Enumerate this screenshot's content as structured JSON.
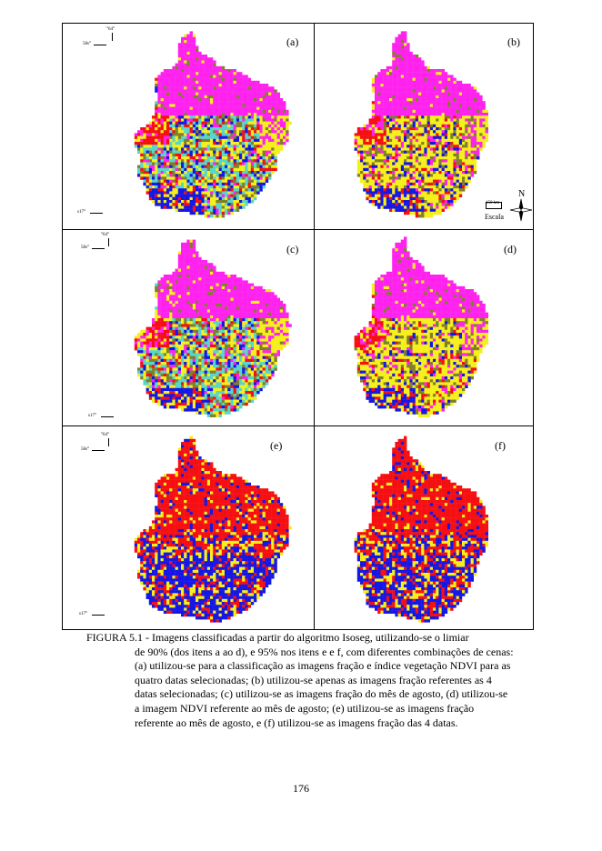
{
  "figure": {
    "panels": [
      {
        "label": "(a)",
        "scheme": "isoseg90",
        "coord_top_lon": "°64°",
        "coord_top_lat": "58s°",
        "coord_bot": "s17°"
      },
      {
        "label": "(b)",
        "scheme": "isoseg90b"
      },
      {
        "label": "(c)",
        "scheme": "isoseg90c",
        "coord_top_lon": "°64°",
        "coord_top_lat": "58s°",
        "coord_bot": ""
      },
      {
        "label": "(d)",
        "scheme": "isoseg90d"
      },
      {
        "label": "(e)",
        "scheme": "isoseg95",
        "coord_top_lon": "°64°",
        "coord_top_lat": "58s°",
        "coord_bot": "s17°"
      },
      {
        "label": "(f)",
        "scheme": "isoseg95b"
      }
    ],
    "north_label": "N",
    "scale_label": "Escala",
    "scale_value": "150 km",
    "colors": {
      "magenta": "#ff22ee",
      "yellow": "#f5ef1c",
      "red": "#f50f12",
      "blue": "#1417e6",
      "cyan": "#57d6cb",
      "olive": "#7f7f2a",
      "white": "#ffffff"
    }
  },
  "caption": {
    "first_line": "FIGURA 5.1 - Imagens classificadas a partir do algoritmo Isoseg, utilizando-se o limiar",
    "rest": "de 90% (dos itens a ao d), e 95% nos itens e e f, com diferentes combinações de cenas: (a) utilizou-se para a classificação as imagens fração e índice vegetação NDVI para as quatro datas selecionadas; (b) utilizou-se apenas as imagens fração referentes as 4 datas selecionadas; (c) utilizou-se as imagens fração do mês de agosto, (d) utilizou-se a imagem NDVI referente ao mês de agosto; (e) utilizou-se as imagens fração referente ao mês de agosto, e (f) utilizou-se as imagens fração das 4 datas."
  },
  "page_number": "176"
}
